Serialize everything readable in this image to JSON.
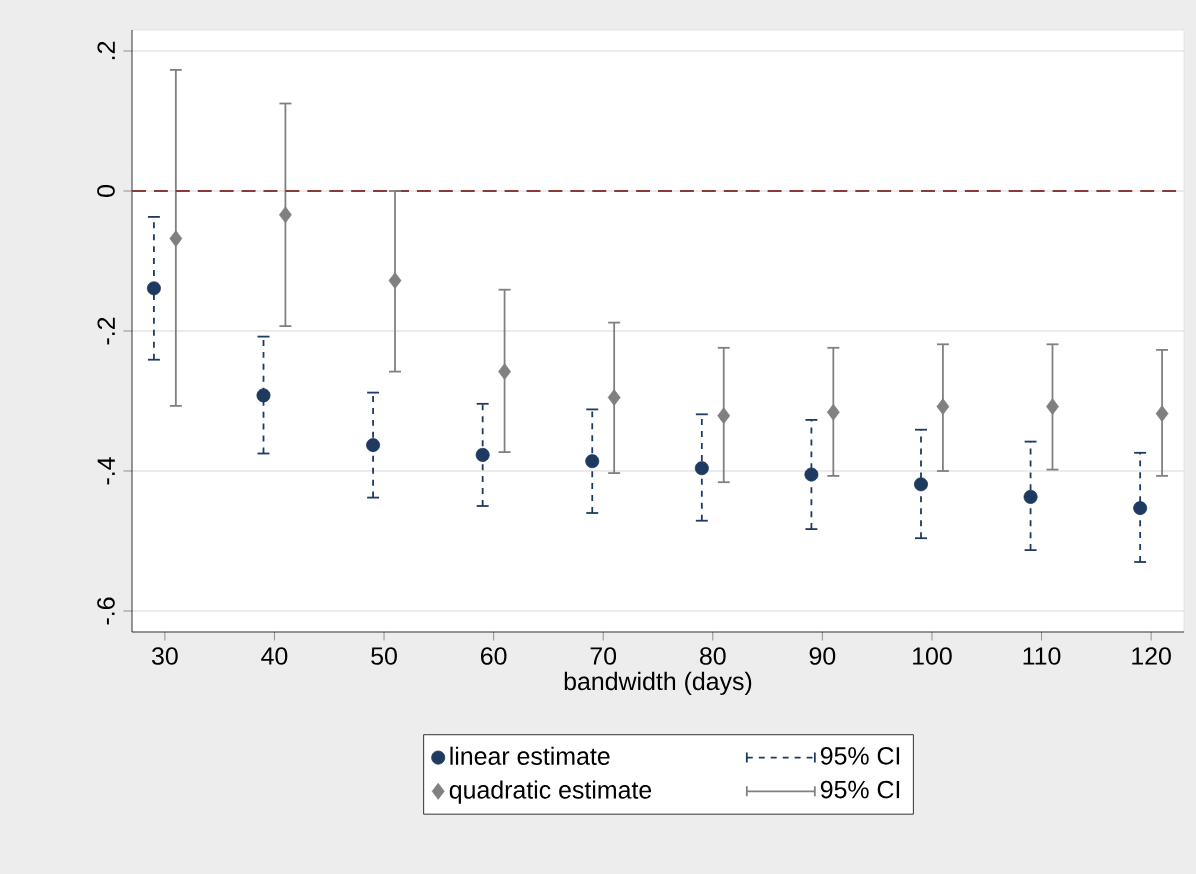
{
  "chart_data": {
    "type": "scatter",
    "xlabel": "bandwidth (days)",
    "xlim": [
      27,
      123
    ],
    "ylim": [
      -0.63,
      0.23
    ],
    "xticks": [
      30,
      40,
      50,
      60,
      70,
      80,
      90,
      100,
      110,
      120
    ],
    "yticks": [
      {
        "value": 0.2,
        "label": ".2"
      },
      {
        "value": 0,
        "label": "0"
      },
      {
        "value": -0.2,
        "label": "-.2"
      },
      {
        "value": -0.4,
        "label": "-.4"
      },
      {
        "value": -0.6,
        "label": "-.6"
      }
    ],
    "grid": "y",
    "legend": "bottom",
    "annotations": [
      "95% CI",
      "95% CI"
    ],
    "series": [
      {
        "name": "linear estimate",
        "color": "#1f3a60",
        "marker": "circle",
        "line_style": "dashed",
        "x": [
          29,
          39,
          49,
          59,
          69,
          79,
          89,
          99,
          109,
          119
        ],
        "values": [
          -0.139,
          -0.292,
          -0.363,
          -0.377,
          -0.386,
          -0.396,
          -0.405,
          -0.419,
          -0.437,
          -0.453
        ],
        "errors": [
          [
            -0.241,
            -0.037
          ],
          [
            -0.375,
            -0.208
          ],
          [
            -0.438,
            -0.288
          ],
          [
            -0.45,
            -0.304
          ],
          [
            -0.46,
            -0.312
          ],
          [
            -0.471,
            -0.319
          ],
          [
            -0.483,
            -0.327
          ],
          [
            -0.496,
            -0.341
          ],
          [
            -0.513,
            -0.358
          ],
          [
            -0.53,
            -0.374
          ]
        ]
      },
      {
        "name": "quadratic estimate",
        "color": "#808080",
        "marker": "diamond",
        "line_style": "solid",
        "x": [
          31,
          41,
          51,
          61,
          71,
          81,
          91,
          101,
          111,
          121
        ],
        "values": [
          -0.068,
          -0.034,
          -0.128,
          -0.258,
          -0.295,
          -0.321,
          -0.316,
          -0.308,
          -0.308,
          -0.318
        ],
        "errors": [
          [
            -0.307,
            0.173
          ],
          [
            -0.193,
            0.125
          ],
          [
            -0.258,
            0.0
          ],
          [
            -0.373,
            -0.141
          ],
          [
            -0.403,
            -0.188
          ],
          [
            -0.416,
            -0.224
          ],
          [
            -0.407,
            -0.224
          ],
          [
            -0.4,
            -0.219
          ],
          [
            -0.398,
            -0.219
          ],
          [
            -0.407,
            -0.227
          ]
        ]
      }
    ],
    "ref_lines": [
      {
        "axis": "y",
        "value": 0,
        "color": "#8b3a3a",
        "line_style": "dashed"
      }
    ]
  }
}
